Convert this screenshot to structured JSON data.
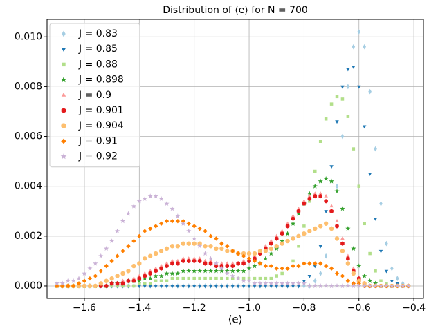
{
  "chart_data": {
    "type": "scatter",
    "title": "Distribution of  ⟨e⟩ for N =  700",
    "x_label": "⟨e⟩",
    "xlim": [
      -1.736,
      -0.365
    ],
    "ylim": [
      -0.0005,
      0.0107
    ],
    "xticks": [
      {
        "value": -1.6,
        "label": "−1.6"
      },
      {
        "value": -1.4,
        "label": "−1.4"
      },
      {
        "value": -1.2,
        "label": "−1.2"
      },
      {
        "value": -1.0,
        "label": "−1.0"
      },
      {
        "value": -0.8,
        "label": "−0.8"
      },
      {
        "value": -0.6,
        "label": "−0.6"
      },
      {
        "value": -0.4,
        "label": "−0.4"
      }
    ],
    "yticks": [
      {
        "value": 0,
        "label": "0.000"
      },
      {
        "value": 0.002,
        "label": "0.002"
      },
      {
        "value": 0.004,
        "label": "0.004"
      },
      {
        "value": 0.006,
        "label": "0.006"
      },
      {
        "value": 0.008,
        "label": "0.008"
      },
      {
        "value": 0.01,
        "label": "0.010"
      }
    ],
    "grid": true,
    "legend": "upper left",
    "x": [
      -1.7,
      -1.68,
      -1.66,
      -1.64,
      -1.62,
      -1.6,
      -1.58,
      -1.56,
      -1.54,
      -1.52,
      -1.5,
      -1.48,
      -1.46,
      -1.44,
      -1.42,
      -1.4,
      -1.38,
      -1.36,
      -1.34,
      -1.32,
      -1.3,
      -1.28,
      -1.26,
      -1.24,
      -1.22,
      -1.2,
      -1.18,
      -1.16,
      -1.14,
      -1.12,
      -1.1,
      -1.08,
      -1.06,
      -1.04,
      -1.02,
      -1.0,
      -0.98,
      -0.96,
      -0.94,
      -0.92,
      -0.9,
      -0.88,
      -0.86,
      -0.84,
      -0.82,
      -0.8,
      -0.78,
      -0.76,
      -0.74,
      -0.72,
      -0.7,
      -0.68,
      -0.66,
      -0.64,
      -0.62,
      -0.6,
      -0.58,
      -0.56,
      -0.54,
      -0.52,
      -0.5,
      -0.48,
      -0.46,
      -0.44,
      -0.42
    ],
    "series": [
      {
        "name": "J = 0.83",
        "color": "#a6cee3",
        "marker": "thin_diamond",
        "values": [
          0,
          0,
          0,
          0,
          0,
          0,
          0,
          0,
          0,
          0,
          0,
          0,
          0,
          0,
          0,
          0,
          0,
          0,
          0,
          0,
          0,
          0,
          0,
          0,
          0,
          0,
          0,
          0,
          0,
          0,
          0,
          0,
          0,
          0,
          0,
          0,
          0,
          0,
          0,
          0,
          0,
          0,
          0,
          0,
          0,
          0,
          0,
          0.0002,
          0.0005,
          0.0012,
          0.0023,
          0.004,
          0.006,
          0.008,
          0.0096,
          0.0102,
          0.0096,
          0.0078,
          0.0055,
          0.0033,
          0.0017,
          0.0007,
          0.0003,
          0.0001,
          0
        ]
      },
      {
        "name": "J = 0.85",
        "color": "#1f78b4",
        "marker": "triangle_down",
        "values": [
          0,
          0,
          0,
          0,
          0,
          0,
          0,
          0,
          0,
          0,
          0,
          0,
          0,
          0,
          0,
          0,
          0,
          0,
          0,
          0,
          0,
          0,
          0,
          0,
          0,
          0,
          0,
          0,
          0,
          0,
          0,
          0,
          0,
          0,
          0,
          0,
          0,
          0,
          0,
          0,
          0,
          0,
          0,
          0,
          0,
          0.0002,
          0.0004,
          0.0008,
          0.0016,
          0.003,
          0.0048,
          0.0066,
          0.008,
          0.0087,
          0.0088,
          0.008,
          0.0064,
          0.0045,
          0.0027,
          0.0014,
          0.0006,
          0.0002,
          0.0001,
          0,
          0
        ]
      },
      {
        "name": "J = 0.88",
        "color": "#b2df8a",
        "marker": "square",
        "values": [
          0,
          0,
          0,
          0,
          0,
          0,
          0,
          0,
          0,
          0,
          0,
          0,
          0,
          0,
          0,
          0.0001,
          0.0001,
          0.0001,
          0.0002,
          0.0002,
          0.0002,
          0.0003,
          0.0003,
          0.0003,
          0.0003,
          0.0003,
          0.0003,
          0.0003,
          0.0003,
          0.0003,
          0.0003,
          0.0003,
          0.0003,
          0.0003,
          0.0003,
          0.0003,
          0.0003,
          0.0003,
          0.0003,
          0.0003,
          0.0004,
          0.0005,
          0.0007,
          0.001,
          0.0016,
          0.0024,
          0.0034,
          0.0046,
          0.0058,
          0.0067,
          0.0073,
          0.0076,
          0.0075,
          0.0068,
          0.0055,
          0.004,
          0.0025,
          0.0013,
          0.0006,
          0.0002,
          0.0001,
          0,
          0,
          0,
          0
        ]
      },
      {
        "name": "J = 0.898",
        "color": "#33a02c",
        "marker": "star",
        "values": [
          0,
          0,
          0,
          0,
          0,
          0,
          0,
          0,
          0,
          0,
          0.0001,
          0.0001,
          0.0001,
          0.0002,
          0.0002,
          0.0002,
          0.0003,
          0.0003,
          0.0004,
          0.0004,
          0.0005,
          0.0005,
          0.0005,
          0.0006,
          0.0006,
          0.0006,
          0.0006,
          0.0006,
          0.0006,
          0.0006,
          0.0006,
          0.0006,
          0.0006,
          0.0006,
          0.0006,
          0.0007,
          0.0008,
          0.0009,
          0.0011,
          0.0013,
          0.0015,
          0.0018,
          0.0021,
          0.0025,
          0.0029,
          0.0033,
          0.0037,
          0.004,
          0.0042,
          0.0043,
          0.0042,
          0.0038,
          0.0031,
          0.0023,
          0.0015,
          0.0008,
          0.0004,
          0.0002,
          0.0001,
          0,
          0,
          0,
          0,
          0,
          0
        ]
      },
      {
        "name": "J = 0.9",
        "color": "#fb9a99",
        "marker": "triangle_up",
        "values": [
          0,
          0,
          0,
          0,
          0,
          0,
          0,
          0,
          0,
          0,
          0.0001,
          0.0001,
          0.0002,
          0.0002,
          0.0003,
          0.0004,
          0.0005,
          0.0006,
          0.0007,
          0.0008,
          0.0009,
          0.001,
          0.001,
          0.0011,
          0.0011,
          0.0011,
          0.0011,
          0.001,
          0.001,
          0.0009,
          0.0009,
          0.0009,
          0.0009,
          0.0009,
          0.001,
          0.0011,
          0.0012,
          0.0014,
          0.0016,
          0.0018,
          0.002,
          0.0022,
          0.0025,
          0.0028,
          0.0031,
          0.0034,
          0.0036,
          0.0037,
          0.0037,
          0.0036,
          0.0032,
          0.0026,
          0.0019,
          0.0012,
          0.0007,
          0.0003,
          0.0001,
          0,
          0,
          0,
          0,
          0,
          0,
          0,
          0
        ]
      },
      {
        "name": "J = 0.901",
        "color": "#e31a1c",
        "marker": "hexagon",
        "values": [
          0,
          0,
          0,
          0,
          0,
          0,
          0,
          0,
          0,
          0,
          0.0001,
          0.0001,
          0.0001,
          0.0002,
          0.0002,
          0.0003,
          0.0004,
          0.0005,
          0.0006,
          0.0007,
          0.0008,
          0.0009,
          0.0009,
          0.001,
          0.001,
          0.001,
          0.001,
          0.0009,
          0.0009,
          0.0008,
          0.0008,
          0.0008,
          0.0008,
          0.0009,
          0.0009,
          0.001,
          0.0011,
          0.0013,
          0.0015,
          0.0017,
          0.0019,
          0.0021,
          0.0024,
          0.0027,
          0.003,
          0.0033,
          0.0035,
          0.0036,
          0.0036,
          0.0034,
          0.003,
          0.0024,
          0.0017,
          0.0011,
          0.0006,
          0.0003,
          0.0001,
          0,
          0,
          0,
          0,
          0,
          0,
          0,
          0
        ]
      },
      {
        "name": "J = 0.904",
        "color": "#fdbf6f",
        "marker": "circle",
        "values": [
          0,
          0,
          0,
          0,
          0,
          0,
          0,
          0,
          0.0001,
          0.0002,
          0.0003,
          0.0004,
          0.0005,
          0.0006,
          0.0008,
          0.0009,
          0.0011,
          0.0012,
          0.0013,
          0.0014,
          0.0015,
          0.0016,
          0.0016,
          0.0017,
          0.0017,
          0.0017,
          0.0017,
          0.0016,
          0.0016,
          0.0015,
          0.0015,
          0.0014,
          0.0014,
          0.0013,
          0.0013,
          0.0013,
          0.0013,
          0.0014,
          0.0014,
          0.0015,
          0.0016,
          0.0017,
          0.0018,
          0.0019,
          0.002,
          0.0021,
          0.0022,
          0.0023,
          0.0024,
          0.0025,
          0.0023,
          0.0019,
          0.0014,
          0.0009,
          0.0005,
          0.0002,
          0.0001,
          0,
          0,
          0,
          0,
          0,
          0,
          0,
          0
        ]
      },
      {
        "name": "J = 0.91",
        "color": "#ff7f00",
        "marker": "diamond",
        "values": [
          0,
          0,
          0,
          0,
          0.0001,
          0.0002,
          0.0003,
          0.0004,
          0.0006,
          0.0008,
          0.001,
          0.0012,
          0.0014,
          0.0016,
          0.0018,
          0.002,
          0.0022,
          0.0023,
          0.0024,
          0.0025,
          0.0026,
          0.0026,
          0.0026,
          0.0026,
          0.0025,
          0.0024,
          0.0023,
          0.0022,
          0.002,
          0.0019,
          0.0017,
          0.0016,
          0.0014,
          0.0013,
          0.0012,
          0.0011,
          0.001,
          0.0009,
          0.0008,
          0.0008,
          0.0007,
          0.0007,
          0.0007,
          0.0008,
          0.0008,
          0.0009,
          0.0009,
          0.0009,
          0.0009,
          0.0008,
          0.0007,
          0.0005,
          0.0004,
          0.0002,
          0.0001,
          0.0001,
          0,
          0,
          0,
          0,
          0,
          0,
          0,
          0,
          0
        ]
      },
      {
        "name": "J = 0.92",
        "color": "#cab2d6",
        "marker": "star",
        "values": [
          0.0001,
          0.0001,
          0.0002,
          0.0002,
          0.0003,
          0.0005,
          0.0007,
          0.0009,
          0.0012,
          0.0015,
          0.0018,
          0.0022,
          0.0026,
          0.0029,
          0.0032,
          0.0034,
          0.0035,
          0.0036,
          0.0036,
          0.0035,
          0.0033,
          0.0031,
          0.0028,
          0.0025,
          0.0022,
          0.0019,
          0.0016,
          0.0013,
          0.0011,
          0.0009,
          0.0007,
          0.0005,
          0.0004,
          0.0003,
          0.0002,
          0.0002,
          0.0001,
          0.0001,
          0.0001,
          0.0001,
          0.0001,
          0.0001,
          0.0001,
          0.0001,
          0.0001,
          0.0001,
          0,
          0,
          0,
          0,
          0,
          0,
          0,
          0,
          0,
          0,
          0,
          0,
          0,
          0,
          0,
          0,
          0,
          0,
          0
        ]
      }
    ]
  }
}
